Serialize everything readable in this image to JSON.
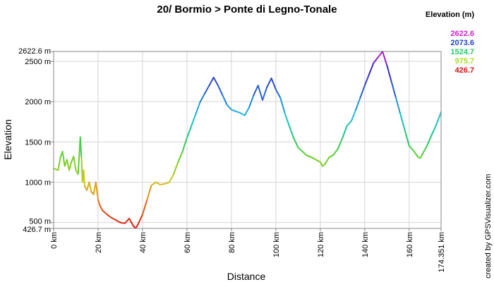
{
  "chart_data": {
    "type": "line",
    "title": "20/ Bormio > Ponte di Legno-Tonale",
    "xlabel": "Distance",
    "ylabel": "Elevation",
    "xlim": [
      0,
      174.351
    ],
    "ylim": [
      426.7,
      2622.6
    ],
    "x_ticks": [
      {
        "value": 0,
        "label": "0 km"
      },
      {
        "value": 20,
        "label": "20 km"
      },
      {
        "value": 40,
        "label": "40 km"
      },
      {
        "value": 60,
        "label": "60 km"
      },
      {
        "value": 80,
        "label": "80 km"
      },
      {
        "value": 100,
        "label": "100 km"
      },
      {
        "value": 120,
        "label": "120 km"
      },
      {
        "value": 140,
        "label": "140 km"
      },
      {
        "value": 160,
        "label": "160 km"
      },
      {
        "value": 174.351,
        "label": "174.351 km"
      }
    ],
    "y_ticks": [
      {
        "value": 426.7,
        "label": "426.7 m"
      },
      {
        "value": 500,
        "label": "500 m"
      },
      {
        "value": 1000,
        "label": "1000 m"
      },
      {
        "value": 1500,
        "label": "1500 m"
      },
      {
        "value": 2000,
        "label": "2000 m"
      },
      {
        "value": 2500,
        "label": "2500 m"
      },
      {
        "value": 2622.6,
        "label": "2622.6 m"
      }
    ],
    "grid": true,
    "legend": {
      "title": "Elevation (m)",
      "position": "top-right",
      "entries": [
        {
          "label": "2622.6",
          "color": "#cc22cc"
        },
        {
          "label": "2073.6",
          "color": "#2244cc"
        },
        {
          "label": "1524.7",
          "color": "#22cc66"
        },
        {
          "label": "975.7",
          "color": "#aadd22"
        },
        {
          "label": "426.7",
          "color": "#dd1111"
        }
      ]
    },
    "series": [
      {
        "x": [
          0,
          2,
          3,
          4,
          5,
          6,
          7,
          8,
          9,
          10,
          11,
          12,
          12.5,
          13,
          13.5,
          14,
          15,
          16,
          17,
          18,
          19,
          20,
          21,
          22,
          24,
          26,
          28,
          30,
          32,
          34,
          35,
          36,
          37,
          38,
          40,
          42,
          44,
          46,
          48,
          50,
          52,
          54,
          56,
          58,
          60,
          62,
          64,
          66,
          68,
          70,
          72,
          74,
          76,
          78,
          80,
          82,
          84,
          86,
          88,
          90,
          92,
          94,
          96,
          98,
          100,
          102,
          104,
          106,
          108,
          110,
          112,
          114,
          116,
          118,
          120,
          121,
          122,
          124,
          126,
          128,
          130,
          132,
          134,
          136,
          138,
          140,
          142,
          144,
          146,
          148,
          150,
          152,
          154,
          156,
          158,
          160,
          162,
          164,
          165,
          166,
          168,
          170,
          172,
          174.351
        ],
        "y": [
          1170,
          1150,
          1300,
          1380,
          1200,
          1280,
          1150,
          1250,
          1320,
          1150,
          1100,
          1560,
          1300,
          1000,
          1150,
          950,
          900,
          1000,
          880,
          850,
          1000,
          780,
          700,
          650,
          600,
          560,
          530,
          500,
          490,
          550,
          500,
          450,
          430,
          480,
          600,
          780,
          960,
          1000,
          970,
          980,
          1000,
          1100,
          1250,
          1380,
          1550,
          1700,
          1850,
          2000,
          2100,
          2200,
          2300,
          2200,
          2080,
          1960,
          1900,
          1880,
          1860,
          1830,
          1930,
          2080,
          2200,
          2020,
          2180,
          2290,
          2150,
          2050,
          1860,
          1700,
          1550,
          1430,
          1380,
          1330,
          1310,
          1280,
          1250,
          1200,
          1220,
          1310,
          1340,
          1420,
          1550,
          1700,
          1760,
          1900,
          2050,
          2200,
          2340,
          2480,
          2550,
          2622.6,
          2450,
          2250,
          2050,
          1850,
          1650,
          1450,
          1390,
          1310,
          1300,
          1350,
          1450,
          1580,
          1700,
          1870
        ]
      }
    ]
  },
  "credit": "created by GPSVisualizer.com"
}
